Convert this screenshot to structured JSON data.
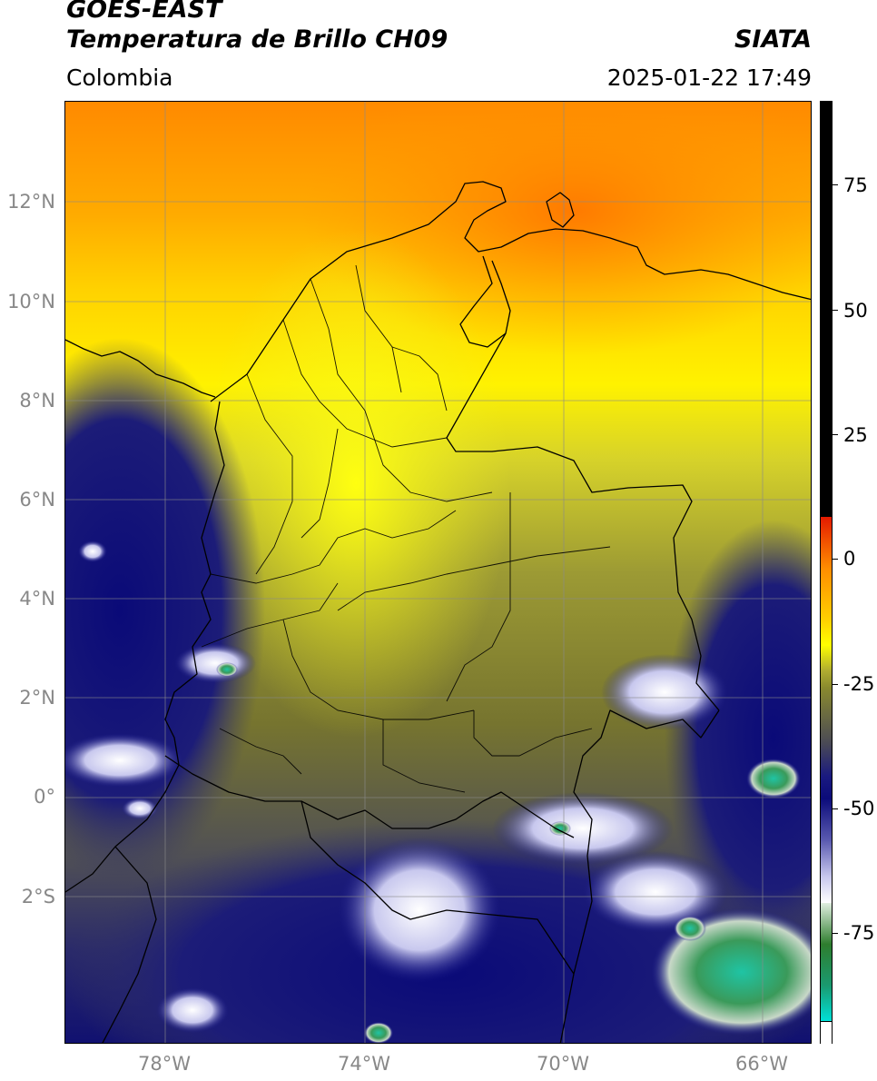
{
  "header": {
    "satellite": "GOES-EAST",
    "product": "Temperatura de Brillo CH09",
    "organization": "SIATA",
    "region": "Colombia",
    "datetime": "2025-01-22 17:49"
  },
  "map": {
    "lat_ticks": [
      "12°N",
      "10°N",
      "8°N",
      "6°N",
      "4°N",
      "2°N",
      "0°",
      "2°S"
    ],
    "lon_ticks": [
      "78°W",
      "74°W",
      "70°W",
      "66°W"
    ],
    "gridlines": true
  },
  "colorbar": {
    "ticks": [
      "75",
      "50",
      "25",
      "0",
      "-25",
      "-50",
      "-75"
    ],
    "colors": {
      "above": "#000000",
      "red": "#e41a00",
      "orange": "#ff8c00",
      "yellow": "#ffff00",
      "olive": "#8a8a2e",
      "gray": "#4a4a55",
      "navy": "#0b0b7a",
      "white": "#ffffff",
      "green": "#2e7d2e",
      "teal": "#00d8d0"
    }
  }
}
